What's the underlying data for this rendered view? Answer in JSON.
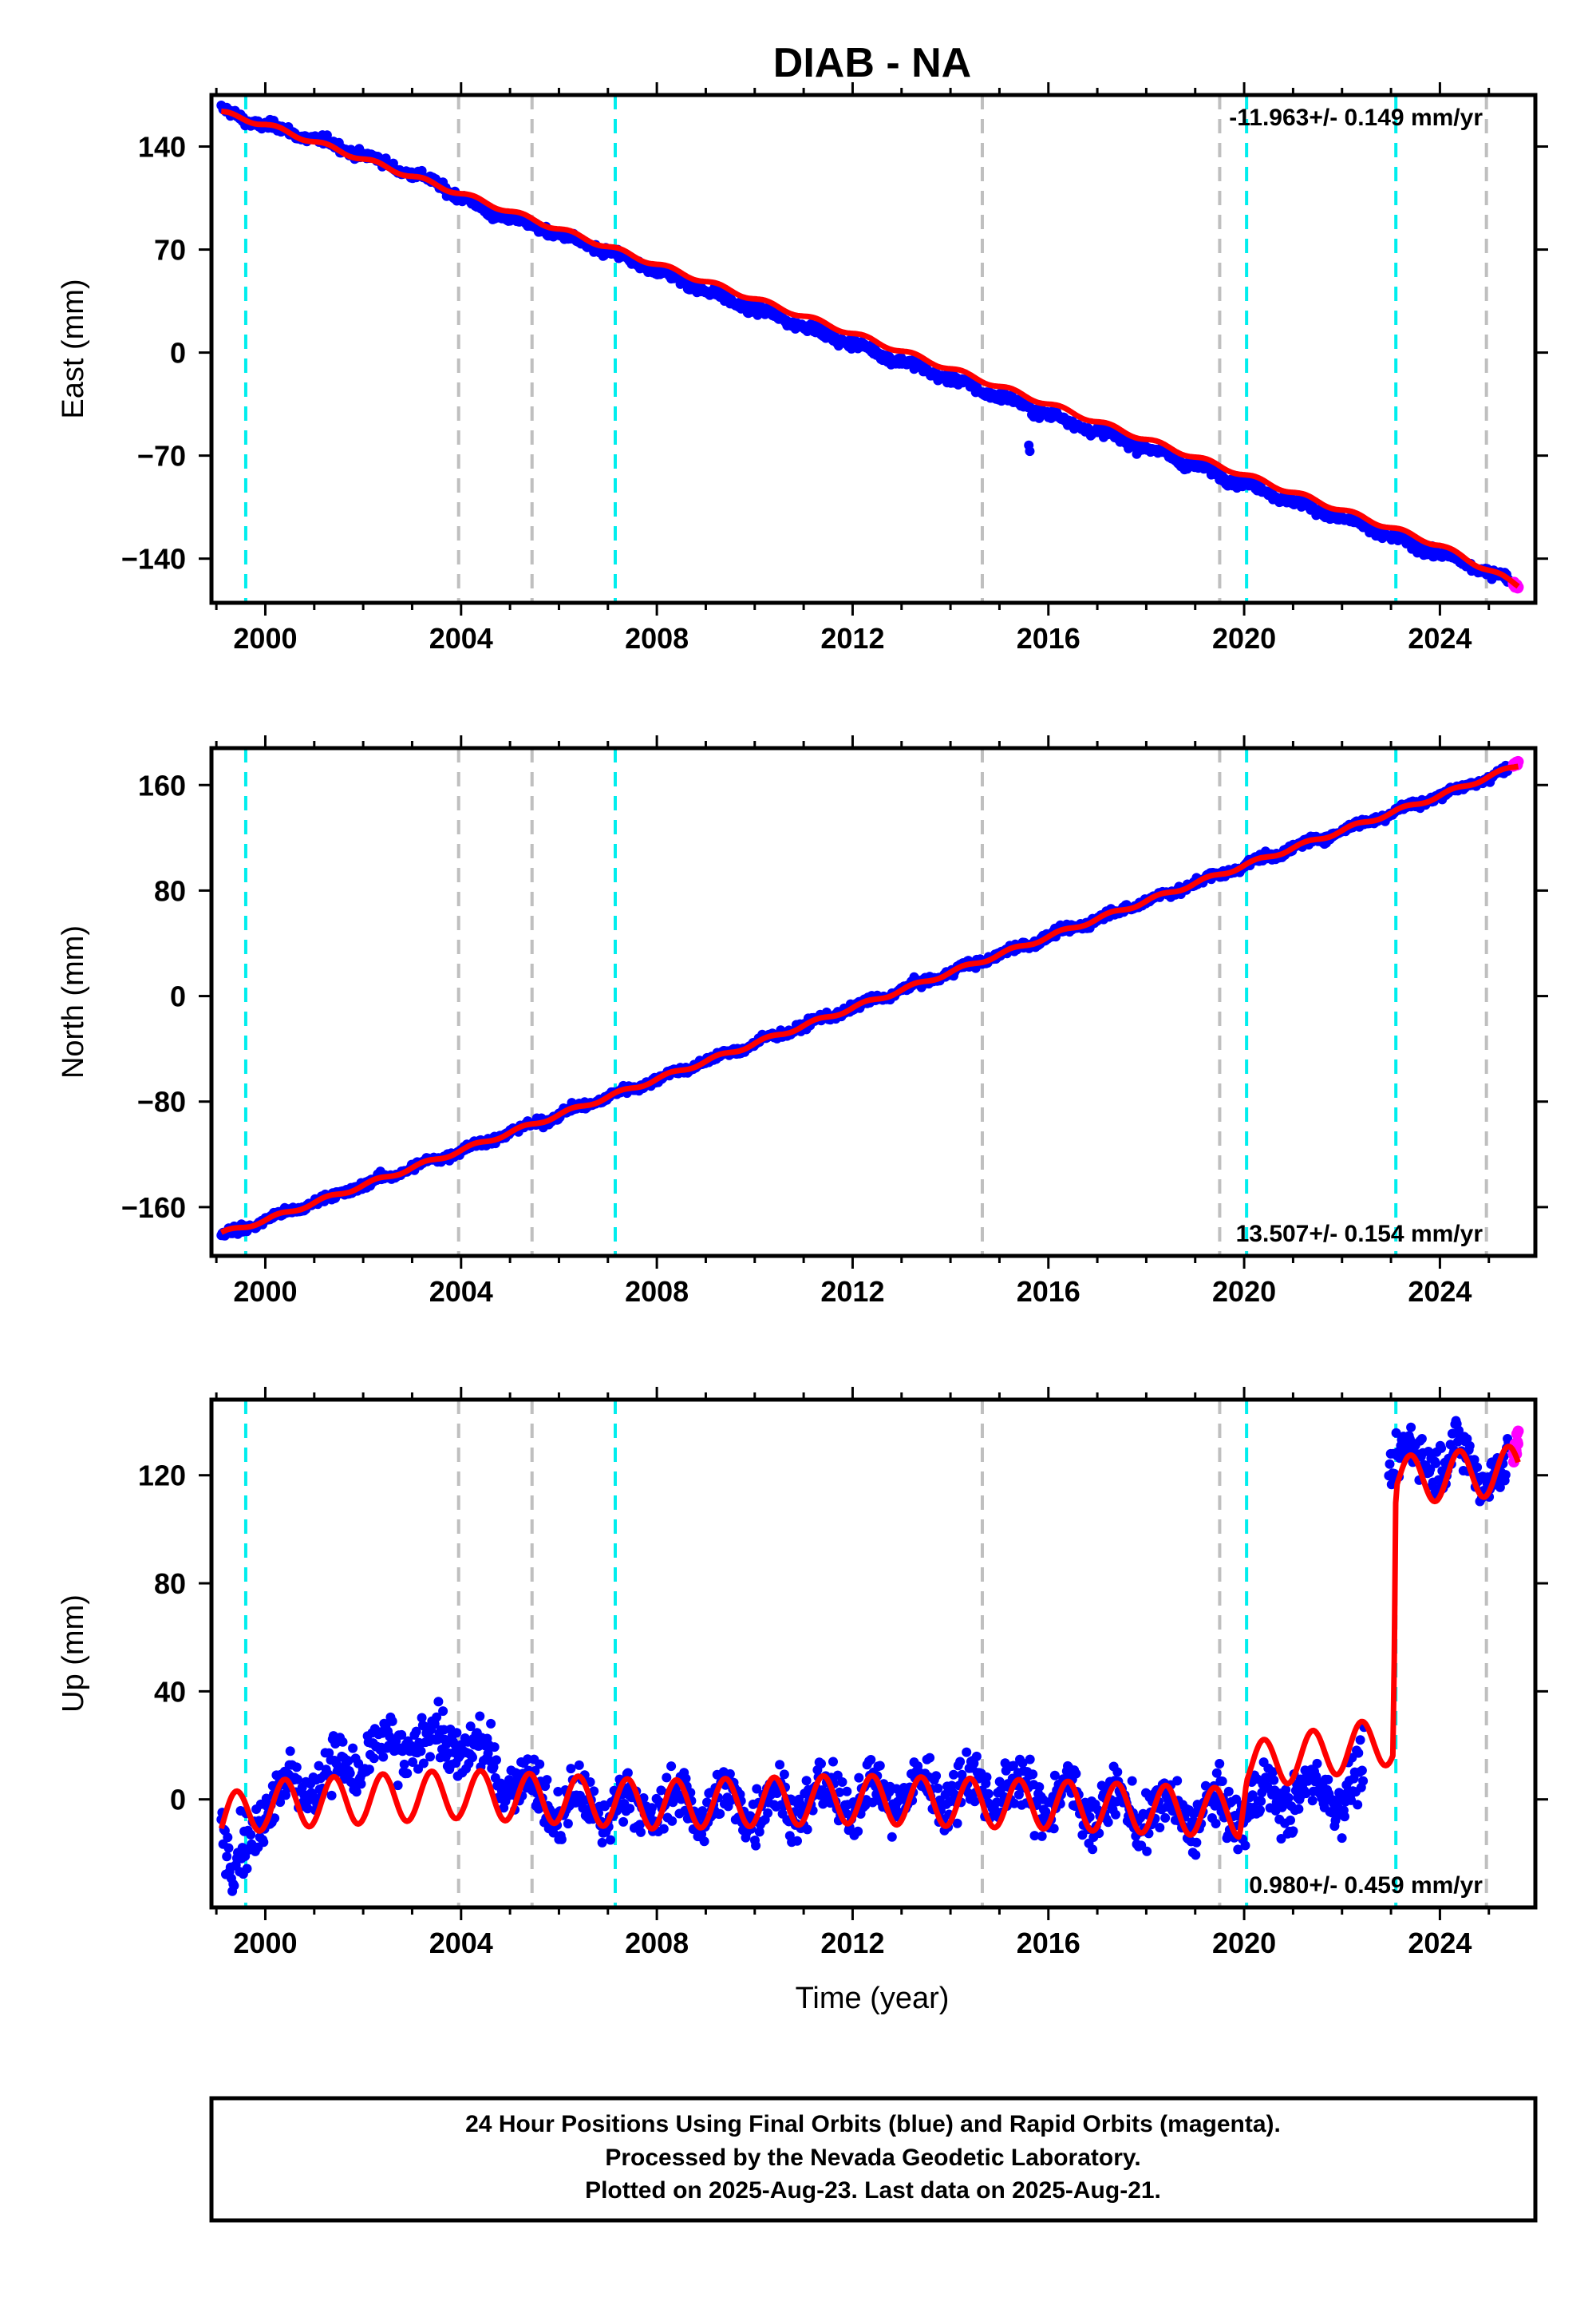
{
  "figure": {
    "title": "DIAB - NA",
    "xlabel": "Time (year)",
    "footer": [
      "24 Hour Positions Using Final Orbits (blue) and Rapid Orbits (magenta).",
      "Processed by the Nevada Geodetic Laboratory.",
      "Plotted on 2025-Aug-23. Last data on 2025-Aug-21."
    ],
    "colors": {
      "final": "#0000ff",
      "rapid": "#ff00ff",
      "model": "#ff0000",
      "equipment_change": "#00eeee",
      "other_event": "#bfbfbf"
    }
  },
  "chart_data": [
    {
      "type": "scatter",
      "panel": "east",
      "ylabel": "East (mm)",
      "rate_text": "-11.963+/- 0.149 mm/yr",
      "xlim": [
        1998.9,
        2025.95
      ],
      "ylim": [
        -170,
        175
      ],
      "xticks": [
        2000,
        2004,
        2008,
        2012,
        2016,
        2020,
        2024
      ],
      "yticks": [
        -140,
        -70,
        0,
        70,
        140
      ],
      "series": [
        {
          "name": "Final Orbits",
          "color": "#0000ff",
          "points": [
            [
              1999.1,
              165
            ],
            [
              1999.6,
              158
            ],
            [
              2000.5,
              150
            ],
            [
              2001.5,
              140
            ],
            [
              2002.5,
              128
            ],
            [
              2003.5,
              115
            ],
            [
              2004.5,
              96
            ],
            [
              2005.5,
              86
            ],
            [
              2006.5,
              74
            ],
            [
              2007.5,
              62
            ],
            [
              2008.5,
              49
            ],
            [
              2009.5,
              35
            ],
            [
              2010.5,
              24
            ],
            [
              2011.5,
              12
            ],
            [
              2012.5,
              0
            ],
            [
              2013.5,
              -12
            ],
            [
              2014.5,
              -24
            ],
            [
              2015.5,
              -36
            ],
            [
              2016.5,
              -48
            ],
            [
              2017.5,
              -59
            ],
            [
              2018.5,
              -71
            ],
            [
              2019.5,
              -83
            ],
            [
              2020.5,
              -95
            ],
            [
              2021.5,
              -107
            ],
            [
              2022.5,
              -119
            ],
            [
              2023.5,
              -131
            ],
            [
              2024.5,
              -143
            ],
            [
              2025.4,
              -154
            ]
          ]
        },
        {
          "name": "Rapid Orbits",
          "color": "#ff00ff",
          "points": [
            [
              2025.5,
              -157
            ],
            [
              2025.6,
              -159
            ]
          ]
        },
        {
          "name": "Model",
          "color": "#ff0000",
          "points": [
            [
              1999.1,
              163
            ],
            [
              2000,
              155
            ],
            [
              2004,
              108
            ],
            [
              2008,
              60
            ],
            [
              2012,
              13
            ],
            [
              2016,
              -35
            ],
            [
              2020,
              -83
            ],
            [
              2024,
              -131
            ],
            [
              2025.6,
              -158
            ]
          ]
        }
      ],
      "outliers": [
        [
          2015.6,
          -63
        ],
        [
          2015.62,
          -67
        ]
      ]
    },
    {
      "type": "scatter",
      "panel": "north",
      "ylabel": "North (mm)",
      "rate_text": "13.507+/- 0.154 mm/yr",
      "xlim": [
        1998.9,
        2025.95
      ],
      "ylim": [
        -197,
        188
      ],
      "xticks": [
        2000,
        2004,
        2008,
        2012,
        2016,
        2020,
        2024
      ],
      "yticks": [
        -160,
        -80,
        0,
        80,
        160
      ],
      "series": [
        {
          "name": "Final Orbits",
          "color": "#0000ff",
          "points": [
            [
              1999.1,
              -182
            ],
            [
              2000,
              -170
            ],
            [
              2004,
              -117
            ],
            [
              2008,
              -63
            ],
            [
              2012,
              -9
            ],
            [
              2016,
              45
            ],
            [
              2020,
              99
            ],
            [
              2024,
              152
            ],
            [
              2025.4,
              171
            ]
          ]
        },
        {
          "name": "Rapid Orbits",
          "color": "#ff00ff",
          "points": [
            [
              2025.5,
              175
            ],
            [
              2025.6,
              177
            ]
          ]
        },
        {
          "name": "Model",
          "color": "#ff0000",
          "points": [
            [
              1999.1,
              -180
            ],
            [
              2000,
              -170
            ],
            [
              2004,
              -117
            ],
            [
              2008,
              -63
            ],
            [
              2012,
              -9
            ],
            [
              2016,
              45
            ],
            [
              2020,
              99
            ],
            [
              2024,
              152
            ],
            [
              2025.6,
              175
            ]
          ]
        }
      ]
    },
    {
      "type": "scatter",
      "panel": "up",
      "ylabel": "Up (mm)",
      "rate_text": "0.980+/- 0.459 mm/yr",
      "xlim": [
        1998.9,
        2025.95
      ],
      "ylim": [
        -40,
        148
      ],
      "xticks": [
        2000,
        2004,
        2008,
        2012,
        2016,
        2020,
        2024
      ],
      "yticks": [
        0,
        40,
        80,
        120
      ],
      "series": [
        {
          "name": "Final Orbits",
          "color": "#0000ff",
          "points": [
            [
              1999.1,
              -5
            ],
            [
              1999.3,
              -30
            ],
            [
              2000,
              0
            ],
            [
              2002.8,
              20
            ],
            [
              2003.8,
              22
            ],
            [
              2006,
              -3
            ],
            [
              2010,
              -2
            ],
            [
              2014.6,
              5
            ],
            [
              2018,
              -5
            ],
            [
              2019.5,
              -5
            ],
            [
              2020.5,
              0
            ],
            [
              2022.4,
              5
            ],
            [
              2023,
              125
            ],
            [
              2024,
              128
            ],
            [
              2025.4,
              120
            ]
          ]
        },
        {
          "name": "Rapid Orbits",
          "color": "#ff00ff",
          "points": [
            [
              2025.5,
              128
            ],
            [
              2025.6,
              132
            ]
          ]
        },
        {
          "name": "Model",
          "color": "#ff0000",
          "points": [
            [
              1999.1,
              -8
            ],
            [
              2000,
              -2
            ],
            [
              2004,
              2
            ],
            [
              2008,
              -2
            ],
            [
              2012,
              0
            ],
            [
              2016,
              -2
            ],
            [
              2019.9,
              -5
            ],
            [
              2020.05,
              12
            ],
            [
              2023.05,
              22
            ],
            [
              2023.1,
              118
            ],
            [
              2025.6,
              122
            ]
          ]
        }
      ],
      "offsets": [
        [
          2020.05,
          "step",
          15
        ],
        [
          2023.1,
          "step",
          100
        ]
      ]
    }
  ],
  "event_lines": {
    "equipment_change_years": [
      1999.6,
      2007.15,
      2020.05,
      2023.1
    ],
    "other_event_years": [
      2003.95,
      2005.45,
      2014.65,
      2019.5,
      2024.95
    ]
  }
}
